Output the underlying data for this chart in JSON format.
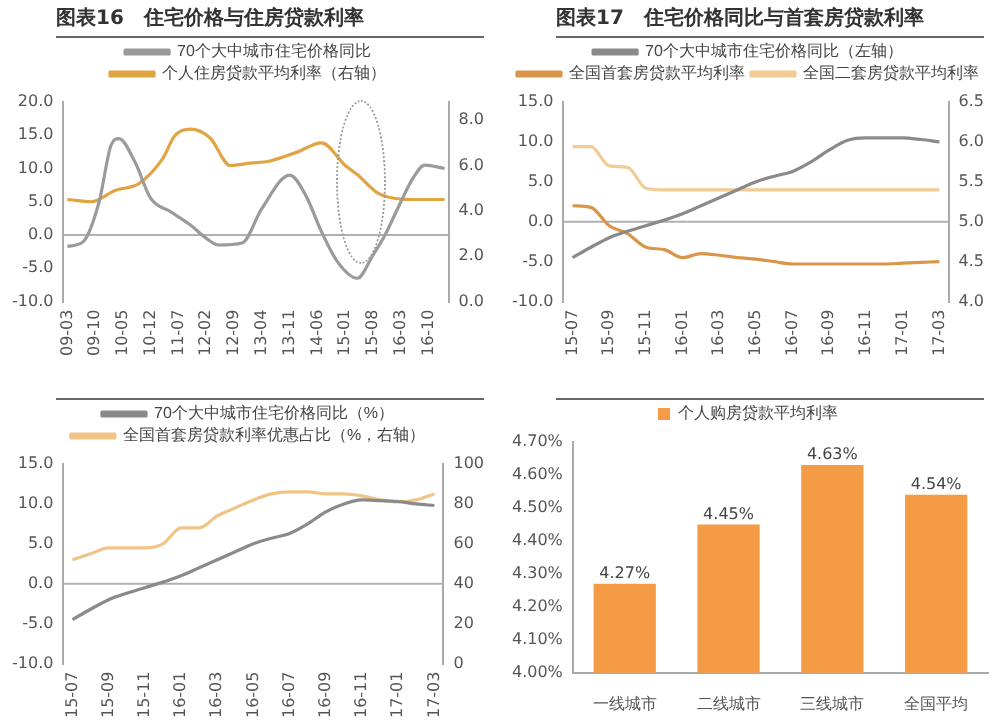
{
  "chart_data": [
    {
      "type": "line",
      "title": "图表16　住宅价格与住房贷款利率",
      "legend": "top",
      "marker": "none",
      "xlim": [
        "2009-02",
        "2017-03"
      ],
      "xticks": [
        {
          "value": "2009-03",
          "label": "09-03"
        },
        {
          "value": "2009-10",
          "label": "09-10"
        },
        {
          "value": "2010-05",
          "label": "10-05"
        },
        {
          "value": "2010-12",
          "label": "10-12"
        },
        {
          "value": "2011-07",
          "label": "11-07"
        },
        {
          "value": "2012-02",
          "label": "12-02"
        },
        {
          "value": "2012-09",
          "label": "12-09"
        },
        {
          "value": "2013-04",
          "label": "13-04"
        },
        {
          "value": "2013-11",
          "label": "13-11"
        },
        {
          "value": "2014-06",
          "label": "14-06"
        },
        {
          "value": "2015-01",
          "label": "15-01"
        },
        {
          "value": "2015-08",
          "label": "15-08"
        },
        {
          "value": "2016-03",
          "label": "16-03"
        },
        {
          "value": "2016-10",
          "label": "16-10"
        }
      ],
      "ylim": [
        -10,
        20
      ],
      "yticks": [
        {
          "value": -10,
          "label": "-10.0"
        },
        {
          "value": -5,
          "label": "-5.0"
        },
        {
          "value": 0,
          "label": "0.0"
        },
        {
          "value": 5,
          "label": "5.0"
        },
        {
          "value": 10,
          "label": "10.0"
        },
        {
          "value": 15,
          "label": "15.0"
        },
        {
          "value": 20,
          "label": "20.0"
        }
      ],
      "y2lim": [
        0,
        8.8
      ],
      "y2ticks": [
        {
          "value": 0,
          "label": "0.0"
        },
        {
          "value": 2,
          "label": "2.0"
        },
        {
          "value": 4,
          "label": "4.0"
        },
        {
          "value": 6,
          "label": "6.0"
        },
        {
          "value": 8,
          "label": "8.0"
        }
      ],
      "ref_lines": [
        {
          "axis": "y",
          "value": 0,
          "color": "#b0b0b0"
        }
      ],
      "series": [
        {
          "name": "70个大中城市住宅价格同比",
          "color": "#9a9a9a",
          "x": [
            "2009-03",
            "2009-07",
            "2009-11",
            "2010-02",
            "2010-04",
            "2010-08",
            "2010-12",
            "2011-05",
            "2011-10",
            "2012-02",
            "2012-05",
            "2012-11",
            "2013-04",
            "2013-11",
            "2014-03",
            "2014-07",
            "2014-11",
            "2015-04",
            "2015-08",
            "2015-11",
            "2016-03",
            "2016-06",
            "2016-09",
            "2017-02"
          ],
          "values": [
            -1.7,
            -1,
            5,
            13.5,
            14.5,
            11,
            5.5,
            3.5,
            1.5,
            -0.5,
            -1.5,
            -1.2,
            4,
            9,
            6,
            0.5,
            -4,
            -6.5,
            -3,
            0,
            5,
            8.5,
            10.5,
            10
          ]
        },
        {
          "name": "个人住房贷款平均利率（右轴）",
          "color": "#e0a445",
          "axis": "y2",
          "x": [
            "2009-03",
            "2009-09",
            "2010-03",
            "2010-09",
            "2011-03",
            "2011-06",
            "2011-10",
            "2012-03",
            "2012-08",
            "2013-01",
            "2013-06",
            "2014-01",
            "2014-07",
            "2015-01",
            "2015-04",
            "2015-09",
            "2015-12",
            "2016-06",
            "2017-02"
          ],
          "values": [
            4.5,
            4.4,
            4.9,
            5.2,
            6.3,
            7.3,
            7.6,
            7.2,
            6,
            6.1,
            6.2,
            6.6,
            7,
            6,
            5.6,
            4.8,
            4.6,
            4.5,
            4.5
          ]
        }
      ]
    },
    {
      "type": "line",
      "title": "图表17　住宅价格同比与首套房贷款利率",
      "legend": "top",
      "marker": "none",
      "categories": [
        "15-07",
        null,
        "15-09",
        null,
        "15-11",
        null,
        "16-01",
        null,
        "16-03",
        null,
        "16-05",
        null,
        "16-07",
        null,
        "16-09",
        null,
        "16-11",
        null,
        "17-01",
        null,
        "17-03"
      ],
      "ylim": [
        -10,
        15
      ],
      "yticks": [
        {
          "value": -10,
          "label": "-10.0"
        },
        {
          "value": -5,
          "label": "-5.0"
        },
        {
          "value": 0,
          "label": "0.0"
        },
        {
          "value": 5,
          "label": "5.0"
        },
        {
          "value": 10,
          "label": "10.0"
        },
        {
          "value": 15,
          "label": "15.0"
        }
      ],
      "y2lim": [
        4,
        6.5
      ],
      "y2ticks": [
        {
          "value": 4,
          "label": "4.0"
        },
        {
          "value": 4.5,
          "label": "4.5"
        },
        {
          "value": 5,
          "label": "5.0"
        },
        {
          "value": 5.5,
          "label": "5.5"
        },
        {
          "value": 6,
          "label": "6.0"
        },
        {
          "value": 6.5,
          "label": "6.5"
        }
      ],
      "ref_lines": [
        {
          "axis": "y",
          "value": 0,
          "color": "#b0b0b0"
        }
      ],
      "series": [
        {
          "name": "70个大中城市住宅价格同比（左轴）",
          "color": "#8a8a8a",
          "values": [
            -4.5,
            -3.2,
            -2,
            -1.2,
            -0.5,
            0.2,
            1,
            2,
            3,
            4,
            5,
            5.7,
            6.3,
            7.5,
            9,
            10.2,
            10.5,
            10.5,
            10.5,
            10.3,
            10
          ]
        },
        {
          "name": "全国首套房贷款平均利率",
          "color": "#d9954a",
          "axis": "y2",
          "values": [
            5.2,
            5.18,
            4.95,
            4.85,
            4.68,
            4.65,
            4.55,
            4.6,
            4.58,
            4.55,
            4.53,
            4.5,
            4.47,
            4.47,
            4.47,
            4.47,
            4.47,
            4.47,
            4.48,
            4.49,
            4.5
          ]
        },
        {
          "name": "全国二套房贷款平均利率",
          "color": "#f3cc95",
          "axis": "y2",
          "values": [
            5.94,
            5.94,
            5.7,
            5.68,
            5.42,
            5.4,
            5.4,
            5.4,
            5.4,
            5.4,
            5.4,
            5.4,
            5.4,
            5.4,
            5.4,
            5.4,
            5.4,
            5.4,
            5.4,
            5.4,
            5.4
          ]
        }
      ]
    },
    {
      "type": "line",
      "legend": "top",
      "marker": "none",
      "categories": [
        "15-07",
        null,
        "15-09",
        null,
        "15-11",
        null,
        "16-01",
        null,
        "16-03",
        null,
        "16-05",
        null,
        "16-07",
        null,
        "16-09",
        null,
        "16-11",
        null,
        "17-01",
        null,
        "17-03"
      ],
      "ylim": [
        -10,
        15
      ],
      "yticks": [
        {
          "value": -10,
          "label": "-10.0"
        },
        {
          "value": -5,
          "label": "-5.0"
        },
        {
          "value": 0,
          "label": "0.0"
        },
        {
          "value": 5,
          "label": "5.0"
        },
        {
          "value": 10,
          "label": "10.0"
        },
        {
          "value": 15,
          "label": "15.0"
        }
      ],
      "y2lim": [
        0,
        100
      ],
      "y2ticks": [
        0,
        20,
        40,
        60,
        80,
        100
      ],
      "ref_lines": [
        {
          "axis": "y",
          "value": 0,
          "color": "#b0b0b0"
        }
      ],
      "series": [
        {
          "name": "70个大中城市住宅价格同比（%）",
          "color": "#8a8a8a",
          "values": [
            -4.5,
            -3.2,
            -2,
            -1.2,
            -0.5,
            0.2,
            1,
            2,
            3,
            4,
            5,
            5.7,
            6.3,
            7.5,
            9,
            10,
            10.5,
            10.4,
            10.3,
            10,
            9.8
          ]
        },
        {
          "name": "全国首套房贷款利率优惠占比（%，右轴）",
          "color": "#f0c486",
          "axis": "y2",
          "values": [
            52,
            55,
            58,
            58,
            58,
            60,
            68,
            68,
            74,
            78,
            82,
            85,
            86,
            86,
            85,
            85,
            84,
            82,
            81,
            82,
            85
          ]
        }
      ]
    },
    {
      "type": "bar",
      "legend": "top",
      "categories": [
        "一线城市",
        "二线城市",
        "三线城市",
        "全国平均"
      ],
      "ylim": [
        4,
        4.7
      ],
      "yticks": [
        {
          "value": 4,
          "label": "4.00%"
        },
        {
          "value": 4.1,
          "label": "4.10%"
        },
        {
          "value": 4.2,
          "label": "4.20%"
        },
        {
          "value": 4.3,
          "label": "4.30%"
        },
        {
          "value": 4.4,
          "label": "4.40%"
        },
        {
          "value": 4.5,
          "label": "4.50%"
        },
        {
          "value": 4.6,
          "label": "4.60%"
        },
        {
          "value": 4.7,
          "label": "4.70%"
        }
      ],
      "series": [
        {
          "name": "个人购房贷款平均利率",
          "color": "#f59a45",
          "values": [
            4.27,
            4.45,
            4.63,
            4.54
          ],
          "value_labels": [
            "4.27%",
            "4.45%",
            "4.63%",
            "4.54%"
          ]
        }
      ]
    }
  ]
}
